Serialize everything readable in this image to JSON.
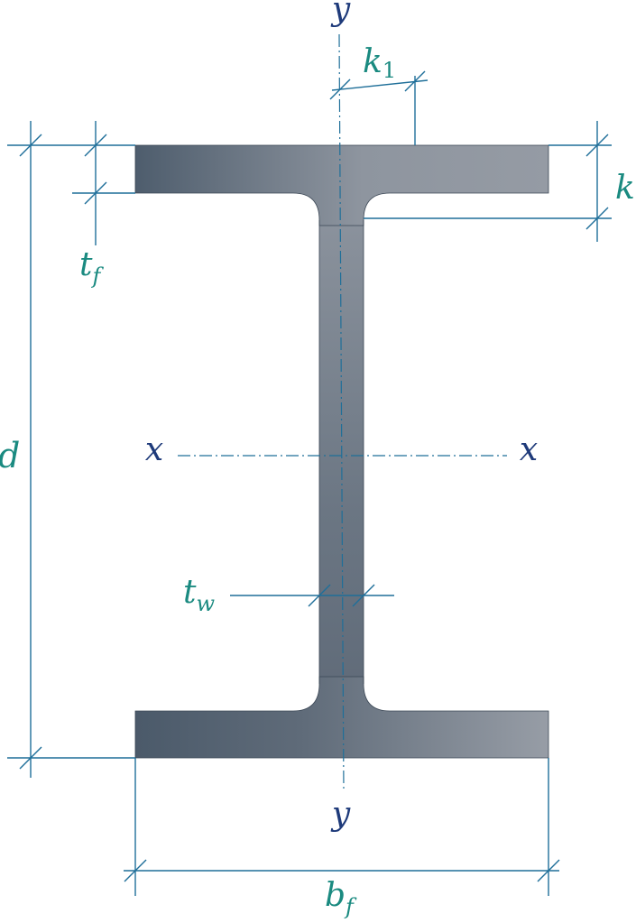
{
  "colors": {
    "dimension": "#1f6f99",
    "teal_label": "#1a8a80",
    "axis_label": "#1e3a7a",
    "steel_dark": "#4c5b6b",
    "steel_light": "#949aa3",
    "outline": "#2f3b48"
  },
  "labels": {
    "y_top": "y",
    "y_bottom": "y",
    "x_left": "x",
    "x_right": "x",
    "k1_main": "k",
    "k1_sub": "1",
    "k": "k",
    "tf_main": "t",
    "tf_sub": "f",
    "d": "d",
    "tw_main": "t",
    "tw_sub": "w",
    "bf_main": "b",
    "bf_sub": "f"
  }
}
